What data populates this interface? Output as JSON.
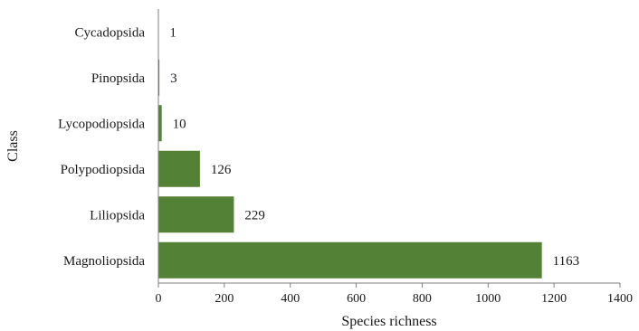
{
  "chart_data": {
    "type": "bar",
    "orientation": "horizontal",
    "xlabel": "Species richness",
    "ylabel": "Class",
    "xlim": [
      0,
      1400
    ],
    "x_ticks": [
      0,
      200,
      400,
      600,
      800,
      1000,
      1200,
      1400
    ],
    "categories": [
      "Cycadopsida",
      "Pinopsida",
      "Lycopodiopsida",
      "Polypodiopsida",
      "Liliopsida",
      "Magnoliopsida"
    ],
    "values": [
      1,
      3,
      10,
      126,
      229,
      1163
    ],
    "data_labels": [
      "1",
      "3",
      "10",
      "126",
      "229",
      "1163"
    ],
    "grid": false,
    "legend": "none",
    "bar_color": "#538135"
  }
}
